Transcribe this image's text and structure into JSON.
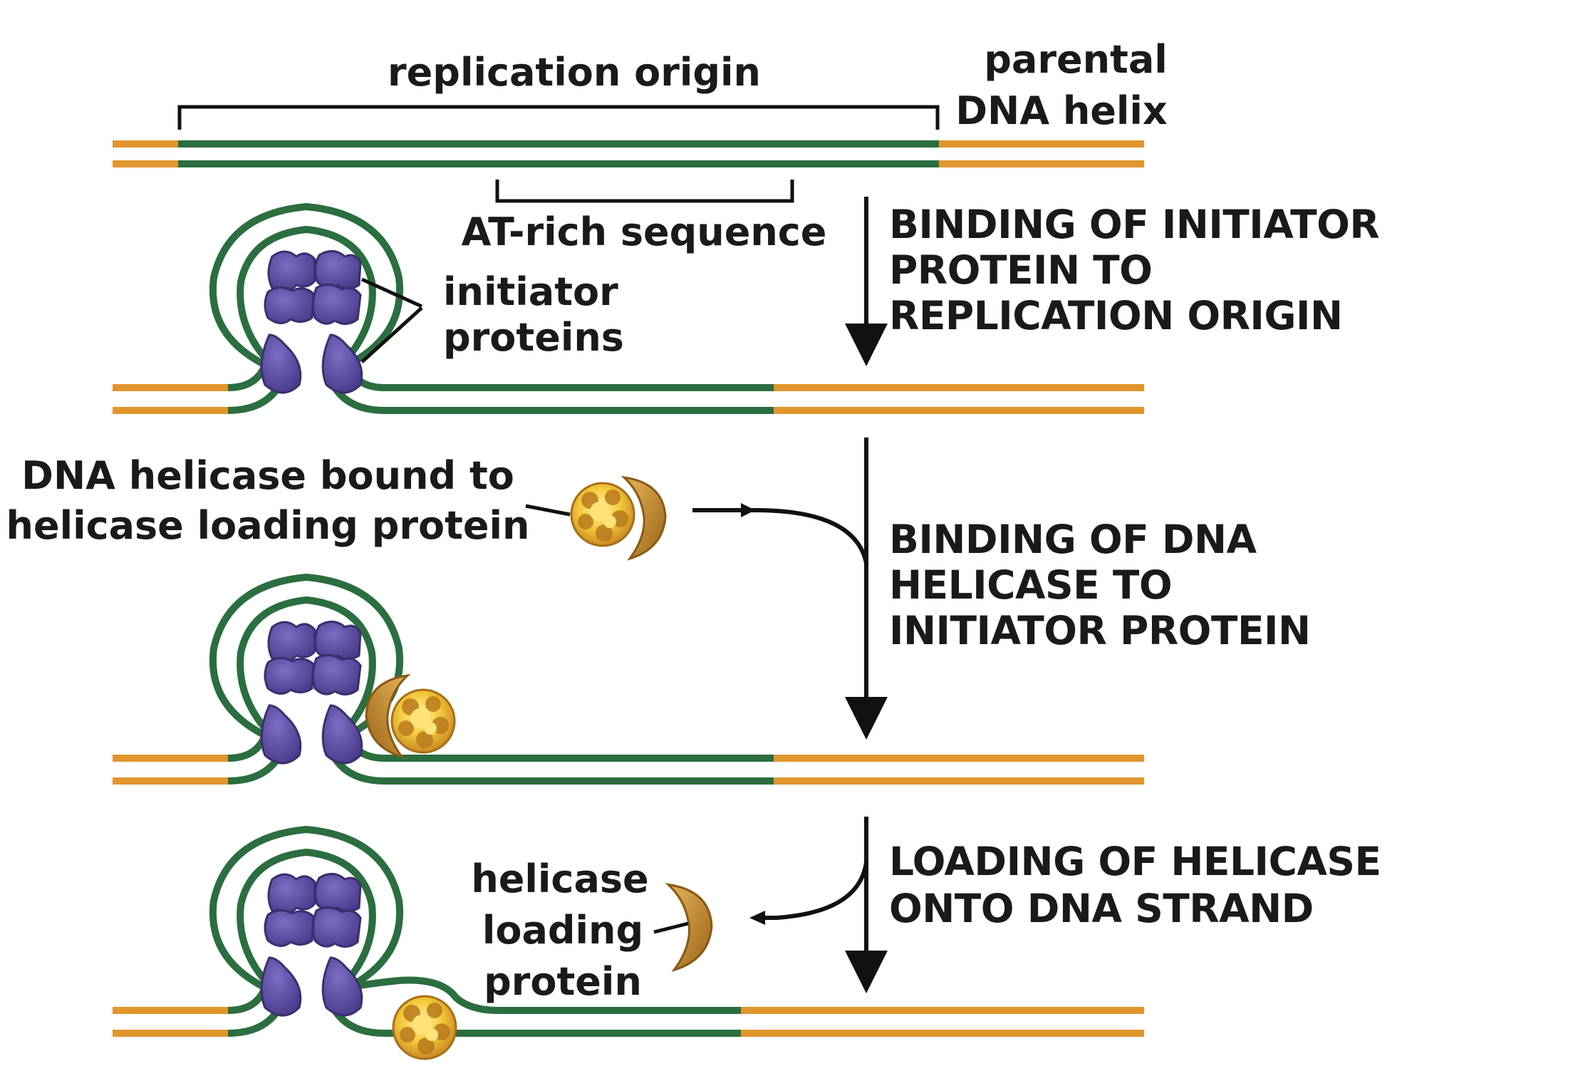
{
  "labels": {
    "replication_origin": "replication origin",
    "parental_line1": "parental",
    "parental_line2": "DNA helix",
    "at_rich": "AT-rich sequence",
    "initiator_line1": "initiator",
    "initiator_line2": "proteins",
    "helicase_bound_line1": "DNA helicase bound to",
    "helicase_bound_line2": "helicase loading protein",
    "loading_line1": "helicase",
    "loading_line2": "loading",
    "loading_line3": "protein"
  },
  "steps": [
    {
      "lines": [
        "BINDING OF INITIATOR",
        "PROTEIN TO",
        "REPLICATION ORIGIN"
      ]
    },
    {
      "lines": [
        "BINDING OF DNA",
        "HELICASE TO",
        "INITIATOR PROTEIN"
      ]
    },
    {
      "lines": [
        "LOADING OF HELICASE",
        "ONTO DNA STRAND"
      ]
    }
  ],
  "colors": {
    "parental_strand": "#e0962e",
    "origin_strand": "#2b6e3f",
    "initiator": "#5a4a9c",
    "initiator_dark": "#3f3278",
    "helicase": "#f3c93a",
    "helicase_dark": "#b97a1e",
    "loader": "#b47a22",
    "ink": "#111111"
  }
}
